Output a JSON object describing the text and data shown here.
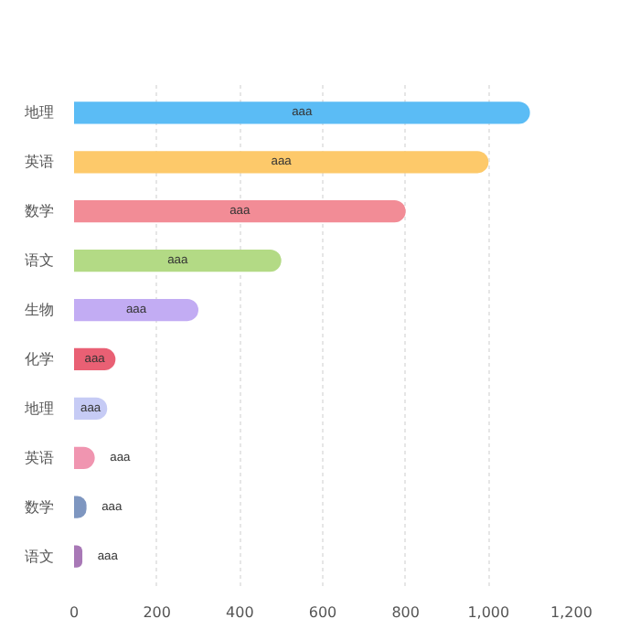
{
  "chart_data": {
    "type": "bar",
    "orientation": "horizontal",
    "categories": [
      "地理",
      "英语",
      "数学",
      "语文",
      "生物",
      "化学",
      "地理",
      "英语",
      "数学",
      "语文"
    ],
    "values": [
      1100,
      1000,
      800,
      500,
      300,
      100,
      80,
      50,
      30,
      20
    ],
    "colors": [
      "#5bbcf5",
      "#fdc96a",
      "#f28c96",
      "#b3da85",
      "#c2acf3",
      "#e96074",
      "#c6cbf5",
      "#f095b0",
      "#7e96c0",
      "#a878b6"
    ],
    "value_labels": [
      "aaa",
      "aaa",
      "aaa",
      "aaa",
      "aaa",
      "aaa",
      "aaa",
      "aaa",
      "aaa",
      "aaa"
    ],
    "xlim": [
      0,
      1200
    ],
    "xticks": [
      0,
      200,
      400,
      600,
      800,
      {
        "value": 1000,
        "label": "1,000"
      },
      {
        "value": 1200,
        "label": "1,200"
      }
    ],
    "grid": "x"
  }
}
